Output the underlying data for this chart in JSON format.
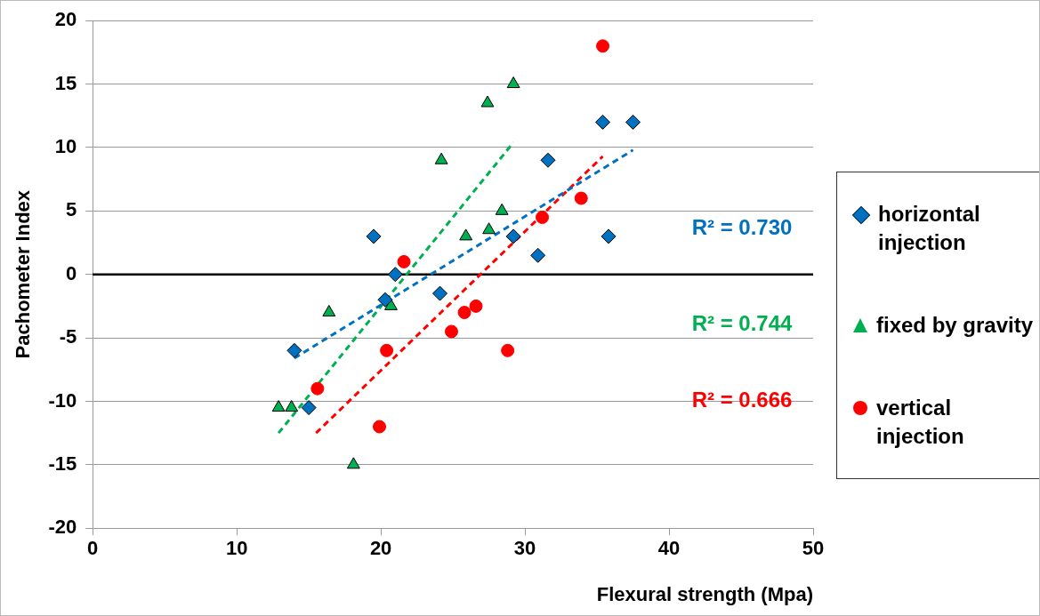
{
  "chart_data": {
    "type": "scatter",
    "xlabel": "Flexural strength (Mpa)",
    "ylabel": "Pachometer Index",
    "xlim": [
      0,
      50
    ],
    "xticks": [
      0,
      10,
      20,
      30,
      40,
      50
    ],
    "ylim": [
      -20,
      20
    ],
    "yticks": [
      -20,
      -15,
      -10,
      -5,
      0,
      5,
      10,
      15,
      20
    ],
    "grid": "y",
    "legend": "right",
    "ref_lines": [
      {
        "axis": "y",
        "value": 0,
        "color": "#000000"
      }
    ],
    "series": [
      {
        "name": "horizontal injection",
        "color": "#0070c0",
        "marker": "diamond",
        "x": [
          14,
          15,
          19.5,
          20.3,
          21,
          24.1,
          29.2,
          30.9,
          31.6,
          35.4,
          35.8,
          37.5
        ],
        "values": [
          -6,
          -10.5,
          3,
          -2,
          0,
          -1.5,
          3,
          1.5,
          9,
          12,
          3,
          12
        ]
      },
      {
        "name": "fixed by gravity",
        "color": "#00b050",
        "marker": "triangle",
        "x": [
          12.9,
          13.8,
          16.4,
          18.1,
          20.7,
          24.2,
          25.9,
          27.5,
          28.4,
          27.4,
          29.2
        ],
        "values": [
          -10.5,
          -10.5,
          -3,
          -15,
          -2.5,
          9,
          3,
          3.5,
          5,
          13.5,
          15
        ]
      },
      {
        "name": "vertical injection",
        "color": "#ff0000",
        "marker": "circle",
        "x": [
          15.6,
          21.6,
          20.4,
          19.9,
          24.9,
          25.8,
          26.6,
          28.8,
          31.2,
          33.9,
          35.4
        ],
        "values": [
          -9,
          1,
          -6,
          -12,
          -4.5,
          -3,
          -2.5,
          -6,
          4.5,
          6,
          18
        ]
      },
      {
        "type": "line",
        "color": "#0070c0",
        "line_style": "dashed",
        "marker": "none",
        "x": [
          14,
          37.5
        ],
        "values": [
          -6.6,
          9.8
        ]
      },
      {
        "type": "line",
        "color": "#00b050",
        "line_style": "dashed",
        "marker": "none",
        "x": [
          12.9,
          29.2
        ],
        "values": [
          -12.5,
          10.4
        ]
      },
      {
        "type": "line",
        "color": "#ff0000",
        "line_style": "dashed",
        "marker": "none",
        "x": [
          15.5,
          35.4
        ],
        "values": [
          -12.5,
          9.3
        ]
      }
    ],
    "annotations": [
      "R² = 0.730",
      "R² = 0.744",
      "R² = 0.666"
    ]
  }
}
